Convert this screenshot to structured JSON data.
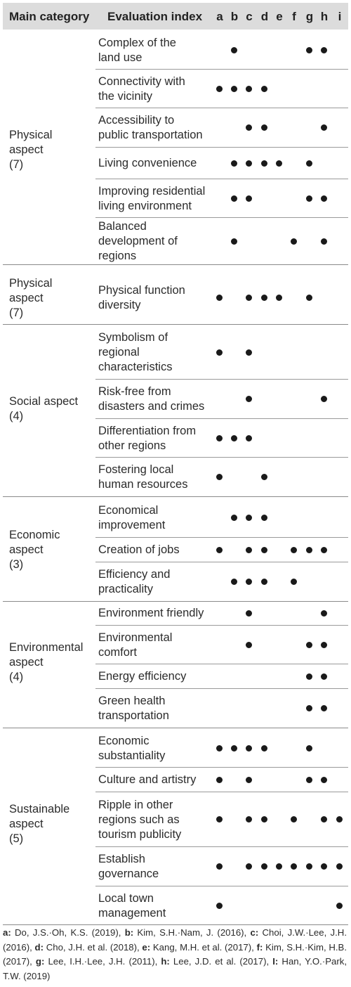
{
  "header": {
    "main_category": "Main category",
    "evaluation_index": "Evaluation index",
    "columns": [
      "a",
      "b",
      "c",
      "d",
      "e",
      "f",
      "g",
      "h",
      "i"
    ]
  },
  "groups": [
    {
      "name": "Physical\naspect\n(7)",
      "rows": [
        {
          "index": "Complex of the\nland use",
          "marks": [
            "b",
            "g",
            "h"
          ]
        },
        {
          "index": "Connectivity with\nthe vicinity",
          "marks": [
            "a",
            "b",
            "c",
            "d"
          ]
        },
        {
          "index": "Accessibility to\npublic transportation",
          "marks": [
            "c",
            "d",
            "h"
          ]
        },
        {
          "index": "Living convenience",
          "marks": [
            "b",
            "c",
            "d",
            "e",
            "g"
          ]
        },
        {
          "index": "Improving residential\nliving environment",
          "marks": [
            "b",
            "c",
            "g",
            "h"
          ]
        },
        {
          "index": "Balanced\ndevelopment of\nregions",
          "marks": [
            "b",
            "f",
            "h"
          ]
        }
      ]
    },
    {
      "name": "Physical\naspect\n(7)",
      "rows": [
        {
          "index": "Physical function\ndiversity",
          "marks": [
            "a",
            "c",
            "d",
            "e",
            "g"
          ]
        }
      ]
    },
    {
      "name": "Social aspect\n(4)",
      "rows": [
        {
          "index": "Symbolism of\nregional\ncharacteristics",
          "marks": [
            "a",
            "c"
          ]
        },
        {
          "index": "Risk-free from\ndisasters and crimes",
          "marks": [
            "c",
            "h"
          ]
        },
        {
          "index": "Differentiation from\nother regions",
          "marks": [
            "a",
            "b",
            "c"
          ]
        },
        {
          "index": "Fostering local\nhuman resources",
          "marks": [
            "a",
            "d"
          ]
        }
      ]
    },
    {
      "name": "Economic\naspect\n(3)",
      "rows": [
        {
          "index": "Economical\nimprovement",
          "marks": [
            "b",
            "c",
            "d"
          ]
        },
        {
          "index": "Creation of jobs",
          "marks": [
            "a",
            "c",
            "d",
            "f",
            "g",
            "h"
          ]
        },
        {
          "index": "Efficiency and\npracticality",
          "marks": [
            "b",
            "c",
            "d",
            "f"
          ]
        }
      ]
    },
    {
      "name": "Environmental\naspect\n(4)",
      "rows": [
        {
          "index": "Environment friendly",
          "marks": [
            "c",
            "h"
          ]
        },
        {
          "index": "Environmental\ncomfort",
          "marks": [
            "c",
            "g",
            "h"
          ]
        },
        {
          "index": "Energy efficiency",
          "marks": [
            "g",
            "h"
          ]
        },
        {
          "index": "Green health\ntransportation",
          "marks": [
            "g",
            "h"
          ]
        }
      ]
    },
    {
      "name": "Sustainable\naspect\n(5)",
      "rows": [
        {
          "index": "Economic\nsubstantiality",
          "marks": [
            "a",
            "b",
            "c",
            "d",
            "g"
          ]
        },
        {
          "index": "Culture and artistry",
          "marks": [
            "a",
            "c",
            "g",
            "h"
          ]
        },
        {
          "index": "Ripple in other\nregions such as\ntourism publicity",
          "marks": [
            "a",
            "c",
            "d",
            "f",
            "h",
            "i"
          ]
        },
        {
          "index": "Establish\ngovernance",
          "marks": [
            "a",
            "c",
            "d",
            "e",
            "f",
            "g",
            "h",
            "i"
          ]
        },
        {
          "index": "Local town\nmanagement",
          "marks": [
            "a",
            "i"
          ]
        }
      ]
    }
  ],
  "references": [
    {
      "key": "a:",
      "text": " Do, J.S.·Oh, K.S. (2019), "
    },
    {
      "key": "b:",
      "text": " Kim, S.H.·Nam, J. (2016), "
    },
    {
      "key": "c:",
      "text": " Choi, J.W.·Lee, J.H. (2016), "
    },
    {
      "key": "d:",
      "text": " Cho, J.H. et al. (2018), "
    },
    {
      "key": "e:",
      "text": " Kang, M.H. et al. (2017), "
    },
    {
      "key": "f:",
      "text": " Kim, S.H.·Kim, H.B. (2017), "
    },
    {
      "key": "g:",
      "text": " Lee, I.H.·Lee, J.H. (2011), "
    },
    {
      "key": "h:",
      "text": " Lee, J.D. et al. (2017), "
    },
    {
      "key": "I:",
      "text": " Han, Y.O.·Park, T.W. (2019)"
    }
  ]
}
